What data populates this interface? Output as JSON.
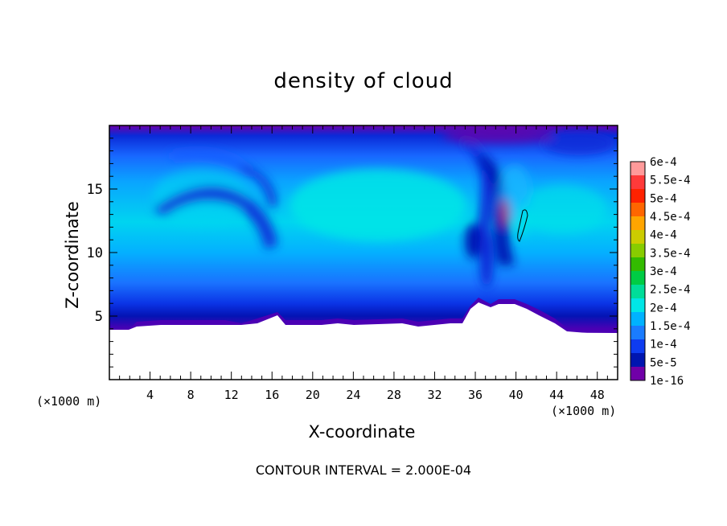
{
  "chart_data": {
    "type": "heatmap",
    "title": "density of cloud",
    "xlabel": "X-coordinate",
    "ylabel": "Z-coordinate",
    "x_unit": "(×1000 m)",
    "xlim": [
      0,
      50
    ],
    "ylim": [
      0,
      20
    ],
    "x_ticks": [
      4,
      8,
      12,
      16,
      20,
      24,
      28,
      32,
      36,
      40,
      44,
      48
    ],
    "y_ticks": [
      5,
      10,
      15
    ],
    "contour_interval": "CONTOUR INTERVAL = 2.000E-04",
    "colorbar": {
      "labels": [
        "6e-4",
        "5.5e-4",
        "5e-4",
        "4.5e-4",
        "4e-4",
        "3.5e-4",
        "3e-4",
        "2.5e-4",
        "2e-4",
        "1.5e-4",
        "1e-4",
        "5e-5",
        "1e-16"
      ],
      "colors": [
        "#ff9a9a",
        "#ff3a3a",
        "#ff2200",
        "#ff6600",
        "#ffa500",
        "#cccc00",
        "#88cc00",
        "#33bb00",
        "#00cc44",
        "#00dd99",
        "#00e6e6",
        "#00b2ff",
        "#1a7cff",
        "#0e3cf0",
        "#0015b0",
        "#7000a8"
      ]
    },
    "grid": false,
    "colors": {
      "terrain": "#ffffff",
      "upper_boundary": "#6a00a8",
      "lower_band": "#4b00b4"
    }
  }
}
